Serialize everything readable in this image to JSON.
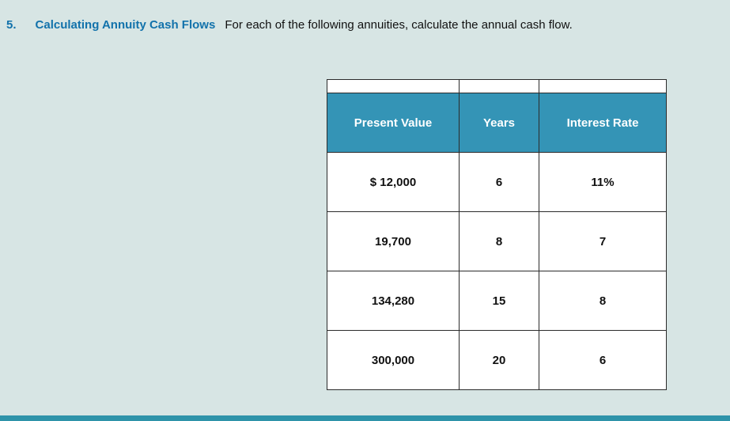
{
  "problem": {
    "number": "5.",
    "title": "Calculating Annuity Cash Flows",
    "description": "For each of the following annuities, calculate the annual cash flow."
  },
  "table": {
    "headers": [
      "Present Value",
      "Years",
      "Interest Rate"
    ],
    "rows": [
      [
        "$ 12,000",
        "6",
        "11%"
      ],
      [
        "19,700",
        "8",
        "7"
      ],
      [
        "134,280",
        "15",
        "8"
      ],
      [
        "300,000",
        "20",
        "6"
      ]
    ]
  },
  "colors": {
    "header_bg": "#3494b6",
    "page_bg": "#d7e5e4",
    "title_color": "#1272ab"
  }
}
